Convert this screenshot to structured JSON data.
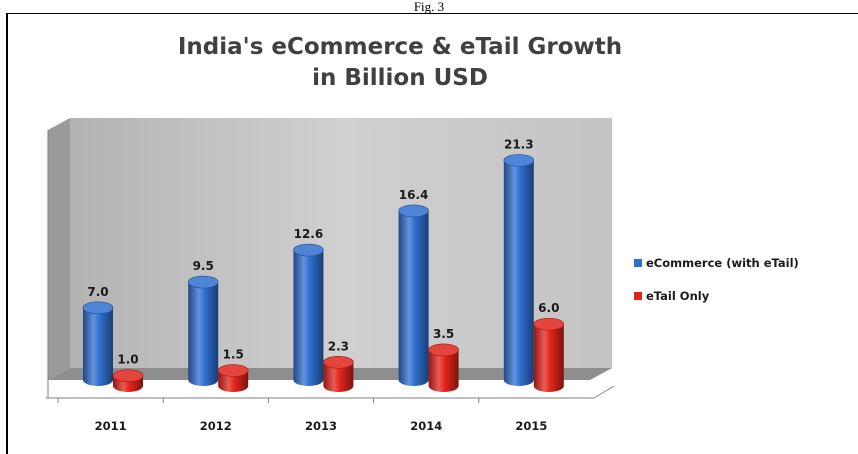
{
  "caption": "Fig. 3",
  "colors": {
    "ecommerce": "#2f6fd0",
    "etail": "#e2241b",
    "wall": "#c9c9c9"
  },
  "chart_data": {
    "type": "bar",
    "title": "India's eCommerce & eTail Growth in Billion USD",
    "title_lines": [
      "India's eCommerce & eTail Growth",
      "in Billion USD"
    ],
    "categories": [
      "2011",
      "2012",
      "2013",
      "2014",
      "2015"
    ],
    "series": [
      {
        "name": "eCommerce (with eTail)",
        "values": [
          7.0,
          9.5,
          12.6,
          16.4,
          21.3
        ]
      },
      {
        "name": "eTail Only",
        "values": [
          1.0,
          1.5,
          2.3,
          3.5,
          6.0
        ]
      }
    ],
    "value_labels": [
      [
        "7.0",
        "9.5",
        "12.6",
        "16.4",
        "21.3"
      ],
      [
        "1.0",
        "1.5",
        "2.3",
        "3.5",
        "6.0"
      ]
    ],
    "ylim": [
      0,
      24
    ],
    "grid": false,
    "legend_position": "right"
  }
}
